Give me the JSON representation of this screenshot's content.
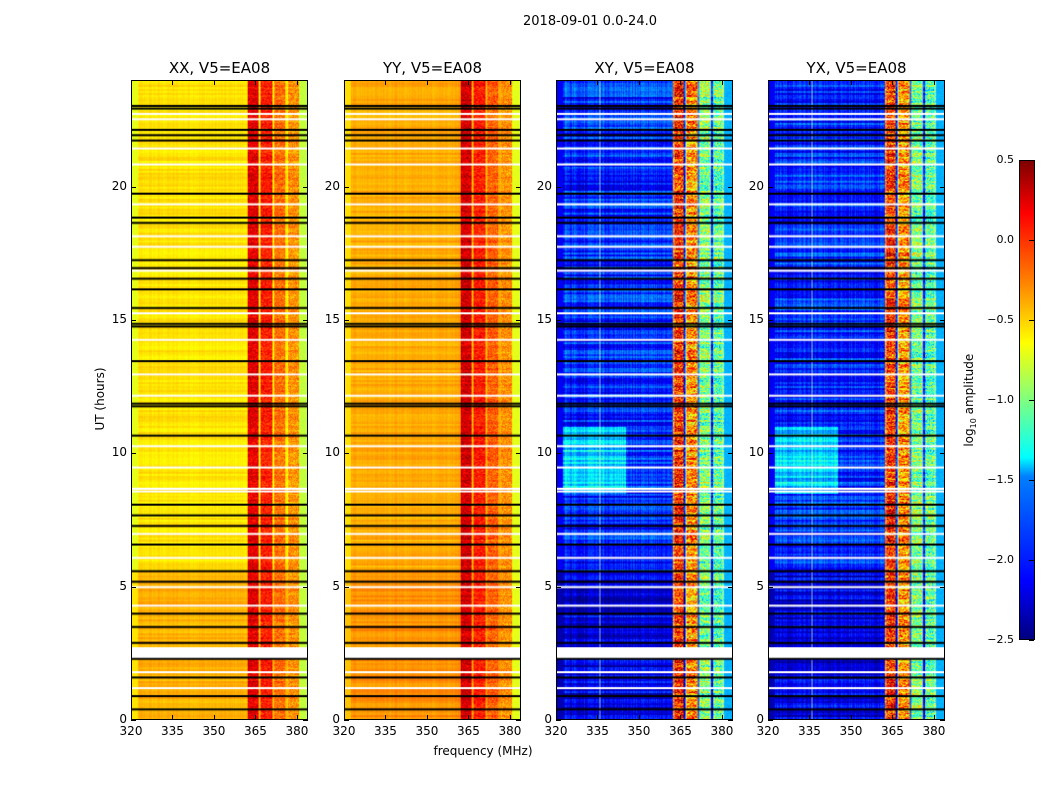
{
  "suptitle": "2018-09-01 0.0-24.0",
  "chart_data": {
    "type": "heatmap",
    "xlabel": "frequency (MHz)",
    "ylabel": "UT (hours)",
    "xlim": [
      320,
      384
    ],
    "ylim": [
      0,
      24
    ],
    "xticks": [
      "320",
      "335",
      "350",
      "365",
      "380"
    ],
    "yticks": [
      "0",
      "5",
      "10",
      "15",
      "20"
    ],
    "colorbar": {
      "label": "log10 amplitude",
      "label_main": "log",
      "label_sub": "10",
      "label_rest": " amplitude",
      "range": [
        -2.5,
        0.5
      ],
      "ticks": [
        "0.5",
        "0.0",
        "−0.5",
        "−1.0",
        "−1.5",
        "−2.0",
        "−2.5"
      ],
      "colormap": "jet"
    },
    "panels": [
      {
        "title": "XX, V5=EA08",
        "base": -0.55,
        "low_hours_base": -0.4,
        "rfi_bands": [
          [
            362,
            366,
            0.2
          ],
          [
            367,
            371,
            0.05
          ],
          [
            372,
            376,
            -0.2
          ],
          [
            377,
            381,
            -0.3
          ]
        ],
        "edge_high": -0.8,
        "noise": 0.08
      },
      {
        "title": "YY, V5=EA08",
        "base": -0.38,
        "low_hours_base": -0.3,
        "rfi_bands": [
          [
            362,
            366,
            0.25
          ],
          [
            367,
            371,
            0.05
          ],
          [
            372,
            376,
            -0.15
          ],
          [
            377,
            381,
            -0.3
          ]
        ],
        "edge_high": -0.7,
        "noise": 0.08
      },
      {
        "title": "XY, V5=EA08",
        "base": -2.0,
        "low_hours_base": -2.2,
        "rfi_bands": [
          [
            362,
            366,
            0.0
          ],
          [
            367,
            371,
            -0.3
          ],
          [
            372,
            376,
            -1.0
          ],
          [
            377,
            381,
            -1.1
          ]
        ],
        "edge_high": -1.6,
        "noise": 0.3
      },
      {
        "title": "YX, V5=EA08",
        "base": -2.0,
        "low_hours_base": -2.2,
        "rfi_bands": [
          [
            362,
            366,
            0.0
          ],
          [
            367,
            371,
            -0.3
          ],
          [
            372,
            376,
            -1.0
          ],
          [
            377,
            381,
            -1.1
          ]
        ],
        "edge_high": -1.6,
        "noise": 0.3
      }
    ],
    "flagged_rows_black_hours": [
      0.4,
      0.9,
      1.6,
      2.3,
      2.9,
      3.5,
      4.0,
      5.2,
      5.6,
      6.6,
      7.3,
      7.7,
      8.1,
      10.7,
      11.8,
      11.9,
      13.5,
      14.8,
      14.9,
      15.5,
      16.2,
      16.6,
      17.0,
      17.3,
      18.7,
      18.9,
      19.8,
      21.8,
      22.0,
      22.2,
      23.0,
      23.1
    ],
    "flagged_rows_white_hours": [
      1.2,
      1.8,
      2.5,
      2.6,
      2.7,
      4.3,
      5.0,
      6.1,
      7.0,
      8.6,
      8.7,
      9.5,
      10.3,
      12.2,
      13.0,
      14.3,
      15.3,
      16.9,
      17.8,
      18.2,
      19.4,
      20.9,
      21.5,
      22.6,
      22.8
    ],
    "vertical_lines_mhz": [
      335.5,
      362.5,
      367,
      371.5,
      376,
      380.5
    ]
  }
}
